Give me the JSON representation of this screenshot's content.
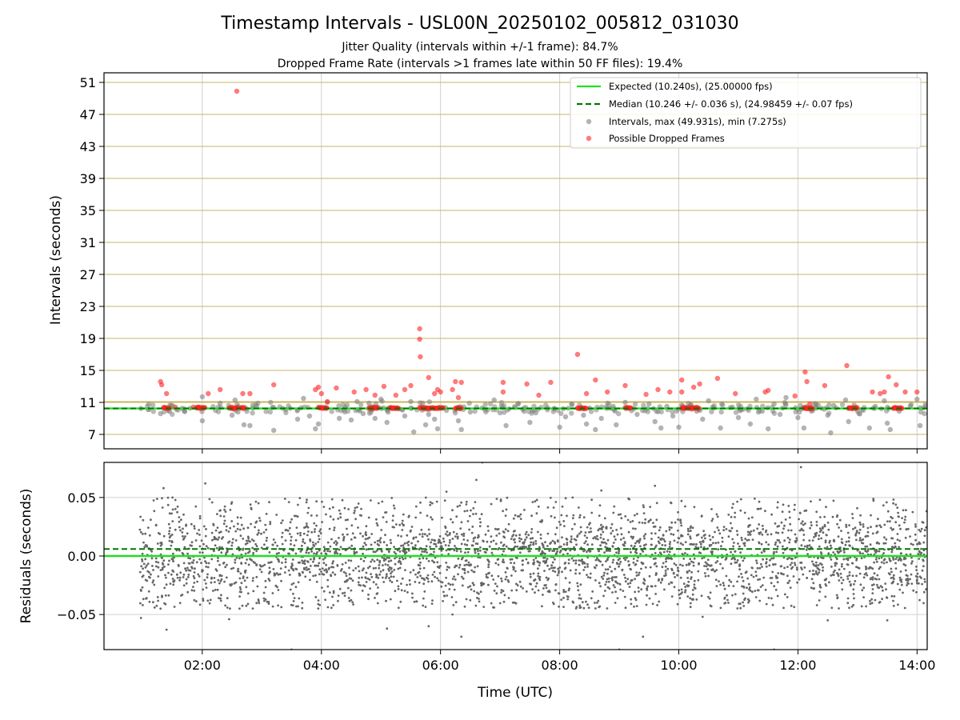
{
  "chart_data": [
    {
      "type": "scatter",
      "title": "Timestamp Intervals - USL00N_20250102_005812_031030",
      "subtitles": [
        "Jitter Quality (intervals within +/-1 frame): 84.7%",
        "Dropped Frame Rate (intervals >1 frames late within 50 FF files): 19.4%"
      ],
      "ylabel": "Intervals (seconds)",
      "xlabel": "",
      "xlim_hours": [
        0.35,
        14.17
      ],
      "ylim": [
        5.2,
        52.2
      ],
      "x_tick_values_hours": [
        2,
        4,
        6,
        8,
        10,
        12,
        14
      ],
      "x_tick_labels": [
        "02:00",
        "04:00",
        "06:00",
        "08:00",
        "10:00",
        "12:00",
        "14:00"
      ],
      "y_ticks": [
        7,
        11,
        15,
        19,
        23,
        27,
        31,
        35,
        39,
        43,
        47,
        51
      ],
      "y_tick_labels": [
        "7",
        "11",
        "15",
        "19",
        "23",
        "27",
        "31",
        "35",
        "39",
        "43",
        "47",
        "51"
      ],
      "grid": true,
      "legend_position": "top-right",
      "colors": {
        "expected": "#22dd22",
        "median": "#007700",
        "intervals": "#808080",
        "dropped": "#ff2222",
        "hgrid": "#c8b560"
      },
      "series": [
        {
          "name": "Expected (10.240s), (25.00000 fps)",
          "kind": "hline",
          "y": 10.24
        },
        {
          "name": "Median (10.246 +/- 0.036 s), (24.98459 +/- 0.07 fps)",
          "kind": "hline-dashed",
          "y": 10.246
        },
        {
          "name": "Intervals, max (49.931s), min (7.275s)",
          "kind": "scatter",
          "points": [
            [
              0.97,
              10.24
            ],
            [
              1.3,
              9.6
            ],
            [
              1.5,
              10.6
            ],
            [
              1.7,
              9.9
            ],
            [
              2.0,
              8.7
            ],
            [
              2.0,
              11.7
            ],
            [
              2.3,
              10.9
            ],
            [
              2.5,
              9.4
            ],
            [
              2.55,
              11.3
            ],
            [
              2.6,
              9.8
            ],
            [
              2.7,
              8.2
            ],
            [
              2.8,
              8.1
            ],
            [
              2.9,
              10.7
            ],
            [
              3.2,
              7.5
            ],
            [
              3.4,
              10.1
            ],
            [
              3.6,
              8.9
            ],
            [
              3.7,
              11.5
            ],
            [
              3.8,
              9.3
            ],
            [
              3.9,
              7.7
            ],
            [
              3.95,
              8.3
            ],
            [
              4.1,
              11.0
            ],
            [
              4.3,
              9.0
            ],
            [
              4.4,
              10.4
            ],
            [
              4.5,
              8.8
            ],
            [
              4.6,
              11.1
            ],
            [
              4.7,
              9.6
            ],
            [
              4.8,
              10.9
            ],
            [
              4.9,
              9.0
            ],
            [
              5.0,
              11.4
            ],
            [
              5.1,
              8.5
            ],
            [
              5.3,
              10.2
            ],
            [
              5.4,
              9.3
            ],
            [
              5.5,
              11.1
            ],
            [
              5.55,
              7.3
            ],
            [
              5.7,
              10.9
            ],
            [
              5.75,
              8.2
            ],
            [
              5.8,
              9.5
            ],
            [
              5.9,
              8.9
            ],
            [
              5.95,
              7.7
            ],
            [
              6.1,
              10.0
            ],
            [
              6.3,
              8.7
            ],
            [
              6.35,
              7.6
            ],
            [
              6.5,
              9.8
            ],
            [
              6.7,
              10.3
            ],
            [
              6.9,
              11.3
            ],
            [
              7.0,
              9.7
            ],
            [
              7.1,
              8.1
            ],
            [
              7.3,
              10.8
            ],
            [
              7.5,
              8.5
            ],
            [
              7.6,
              9.7
            ],
            [
              7.8,
              10.3
            ],
            [
              8.0,
              7.9
            ],
            [
              8.1,
              9.2
            ],
            [
              8.2,
              10.8
            ],
            [
              8.4,
              9.4
            ],
            [
              8.45,
              8.3
            ],
            [
              8.5,
              10.3
            ],
            [
              8.6,
              7.6
            ],
            [
              8.7,
              9.0
            ],
            [
              8.9,
              10.5
            ],
            [
              8.95,
              8.2
            ],
            [
              9.1,
              11.0
            ],
            [
              9.3,
              9.5
            ],
            [
              9.5,
              10.8
            ],
            [
              9.6,
              8.6
            ],
            [
              9.7,
              7.8
            ],
            [
              9.8,
              10.5
            ],
            [
              9.9,
              9.3
            ],
            [
              10.0,
              7.9
            ],
            [
              10.2,
              10.7
            ],
            [
              10.3,
              9.9
            ],
            [
              10.4,
              8.9
            ],
            [
              10.5,
              11.2
            ],
            [
              10.7,
              7.8
            ],
            [
              10.9,
              10.4
            ],
            [
              11.0,
              9.1
            ],
            [
              11.2,
              8.3
            ],
            [
              11.3,
              11.4
            ],
            [
              11.4,
              9.9
            ],
            [
              11.5,
              7.7
            ],
            [
              11.6,
              10.8
            ],
            [
              11.7,
              9.5
            ],
            [
              11.8,
              11.6
            ],
            [
              12.0,
              9.1
            ],
            [
              12.1,
              7.8
            ],
            [
              12.3,
              10.8
            ],
            [
              12.5,
              9.4
            ],
            [
              12.55,
              7.2
            ],
            [
              12.6,
              10.6
            ],
            [
              12.8,
              11.3
            ],
            [
              12.85,
              8.6
            ],
            [
              13.0,
              9.9
            ],
            [
              13.2,
              7.8
            ],
            [
              13.3,
              10.5
            ],
            [
              13.45,
              11.2
            ],
            [
              13.5,
              8.4
            ],
            [
              13.55,
              7.6
            ],
            [
              13.7,
              9.9
            ],
            [
              13.9,
              10.7
            ],
            [
              14.0,
              11.4
            ],
            [
              14.05,
              8.1
            ],
            [
              14.1,
              10.3
            ]
          ]
        },
        {
          "name": "Possible Dropped Frames",
          "kind": "scatter",
          "points": [
            [
              1.3,
              13.6
            ],
            [
              1.32,
              13.2
            ],
            [
              1.4,
              12.1
            ],
            [
              1.55,
              10.4
            ],
            [
              1.85,
              10.4
            ],
            [
              1.95,
              10.4
            ],
            [
              2.1,
              12.1
            ],
            [
              2.3,
              12.6
            ],
            [
              2.5,
              10.4
            ],
            [
              2.58,
              49.9
            ],
            [
              2.68,
              12.1
            ],
            [
              2.8,
              12.1
            ],
            [
              3.2,
              13.2
            ],
            [
              3.9,
              12.6
            ],
            [
              3.95,
              12.9
            ],
            [
              4.0,
              12.1
            ],
            [
              4.1,
              11.1
            ],
            [
              4.25,
              12.8
            ],
            [
              4.55,
              12.3
            ],
            [
              4.75,
              12.6
            ],
            [
              4.9,
              11.9
            ],
            [
              5.05,
              13.0
            ],
            [
              5.25,
              11.9
            ],
            [
              5.4,
              12.6
            ],
            [
              5.5,
              13.1
            ],
            [
              5.65,
              20.2
            ],
            [
              5.65,
              18.9
            ],
            [
              5.66,
              16.7
            ],
            [
              5.8,
              14.1
            ],
            [
              5.9,
              12.1
            ],
            [
              5.95,
              12.6
            ],
            [
              6.0,
              12.3
            ],
            [
              6.2,
              12.6
            ],
            [
              6.25,
              13.6
            ],
            [
              6.3,
              11.6
            ],
            [
              6.35,
              13.5
            ],
            [
              7.05,
              13.5
            ],
            [
              7.05,
              12.3
            ],
            [
              7.45,
              13.3
            ],
            [
              7.65,
              11.9
            ],
            [
              7.85,
              13.5
            ],
            [
              8.3,
              17.0
            ],
            [
              8.45,
              12.1
            ],
            [
              8.6,
              13.8
            ],
            [
              8.8,
              12.3
            ],
            [
              9.1,
              13.1
            ],
            [
              9.45,
              12.0
            ],
            [
              9.65,
              12.6
            ],
            [
              9.85,
              12.3
            ],
            [
              10.05,
              13.8
            ],
            [
              10.05,
              12.3
            ],
            [
              10.25,
              12.9
            ],
            [
              10.35,
              13.3
            ],
            [
              10.65,
              14.0
            ],
            [
              10.95,
              12.1
            ],
            [
              11.45,
              12.3
            ],
            [
              11.5,
              12.5
            ],
            [
              11.95,
              11.8
            ],
            [
              12.12,
              14.8
            ],
            [
              12.15,
              13.6
            ],
            [
              12.2,
              10.8
            ],
            [
              12.45,
              13.1
            ],
            [
              12.82,
              15.6
            ],
            [
              13.25,
              12.3
            ],
            [
              13.38,
              12.1
            ],
            [
              13.45,
              12.3
            ],
            [
              13.52,
              14.2
            ],
            [
              13.65,
              13.2
            ],
            [
              13.8,
              12.3
            ],
            [
              14.0,
              12.3
            ]
          ],
          "clusters_near_y": 10.3,
          "cluster_ranges_hours": [
            [
              1.35,
              1.45
            ],
            [
              1.9,
              2.05
            ],
            [
              2.45,
              2.6
            ],
            [
              2.65,
              2.72
            ],
            [
              3.95,
              4.1
            ],
            [
              4.8,
              4.95
            ],
            [
              5.15,
              5.3
            ],
            [
              5.65,
              6.05
            ],
            [
              6.25,
              6.35
            ],
            [
              8.3,
              8.45
            ],
            [
              9.1,
              9.2
            ],
            [
              10.05,
              10.35
            ],
            [
              12.1,
              12.25
            ],
            [
              12.85,
              13.0
            ],
            [
              13.6,
              13.75
            ]
          ]
        }
      ]
    },
    {
      "type": "scatter",
      "ylabel": "Residuals (seconds)",
      "xlabel": "Time (UTC)",
      "xlim_hours": [
        0.35,
        14.17
      ],
      "ylim": [
        -0.08,
        0.08
      ],
      "y_ticks": [
        -0.05,
        0.0,
        0.05
      ],
      "y_tick_labels": [
        "−0.05",
        "0.00",
        "0.05"
      ],
      "x_tick_values_hours": [
        2,
        4,
        6,
        8,
        10,
        12,
        14
      ],
      "x_tick_labels": [
        "02:00",
        "04:00",
        "06:00",
        "08:00",
        "10:00",
        "12:00",
        "14:00"
      ],
      "grid": true,
      "colors": {
        "expected": "#22dd22",
        "median": "#007700",
        "points": "#666666",
        "grid": "#d0d0d0"
      },
      "series": [
        {
          "kind": "hline",
          "y": 0.0
        },
        {
          "kind": "hline-dashed",
          "y": 0.006
        },
        {
          "kind": "scatter-dense",
          "x_range_hours": [
            0.95,
            14.17
          ],
          "count": 3200,
          "spread_sd": 0.023,
          "y_clip": [
            -0.045,
            0.05
          ],
          "outliers": [
            [
              0.97,
              -0.053
            ],
            [
              1.0,
              -0.042
            ],
            [
              1.2,
              -0.044
            ],
            [
              1.3,
              -0.045
            ],
            [
              1.35,
              0.058
            ],
            [
              1.4,
              -0.063
            ],
            [
              1.5,
              0.05
            ],
            [
              2.05,
              0.062
            ],
            [
              2.45,
              -0.054
            ],
            [
              3.5,
              -0.08
            ],
            [
              3.95,
              -0.038
            ],
            [
              4.2,
              -0.042
            ],
            [
              5.1,
              -0.062
            ],
            [
              5.8,
              -0.06
            ],
            [
              6.1,
              0.055
            ],
            [
              6.2,
              -0.05
            ],
            [
              6.35,
              -0.069
            ],
            [
              6.6,
              0.065
            ],
            [
              6.7,
              0.08
            ],
            [
              8.0,
              0.08
            ],
            [
              8.7,
              0.056
            ],
            [
              9.0,
              -0.08
            ],
            [
              9.4,
              -0.069
            ],
            [
              9.6,
              0.06
            ],
            [
              10.4,
              -0.052
            ],
            [
              11.6,
              -0.08
            ],
            [
              12.05,
              0.076
            ],
            [
              12.5,
              -0.055
            ],
            [
              13.5,
              -0.055
            ],
            [
              13.6,
              0.045
            ]
          ]
        }
      ]
    }
  ]
}
